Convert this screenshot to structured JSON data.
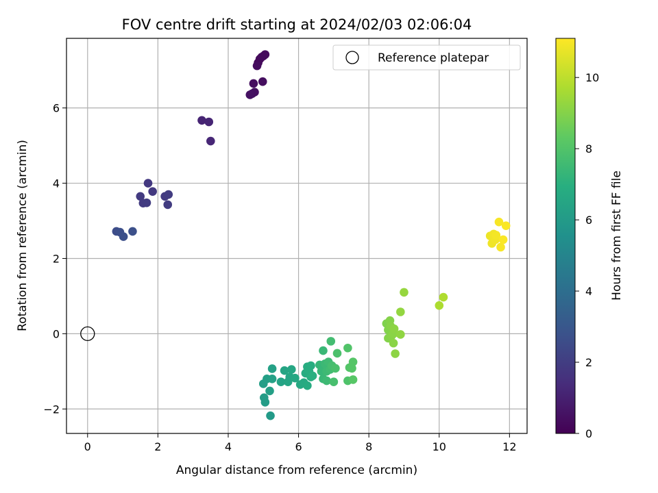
{
  "chart_data": {
    "type": "scatter",
    "title": "FOV centre drift starting at 2024/02/03 02:06:04",
    "xlabel": "Angular distance from reference (arcmin)",
    "ylabel": "Rotation from reference (arcmin)",
    "xlim": [
      -0.6,
      12.5
    ],
    "ylim": [
      -2.65,
      7.85
    ],
    "xticks": [
      0,
      2,
      4,
      6,
      8,
      10,
      12
    ],
    "yticks": [
      -2,
      0,
      2,
      4,
      6
    ],
    "grid": true,
    "legend": {
      "placement": "top-right",
      "entries": [
        "Reference platepar"
      ]
    },
    "reference_point": {
      "x": 0,
      "y": 0
    },
    "colorbar": {
      "label": "Hours from first FF file",
      "range": [
        0,
        11.1
      ],
      "ticks": [
        0,
        2,
        4,
        6,
        8,
        10
      ],
      "colormap": "viridis"
    },
    "points": [
      {
        "x": 4.85,
        "y": 7.2,
        "c": 0.2
      },
      {
        "x": 4.9,
        "y": 7.3,
        "c": 0.25
      },
      {
        "x": 5.0,
        "y": 7.38,
        "c": 0.3
      },
      {
        "x": 5.05,
        "y": 7.42,
        "c": 0.3
      },
      {
        "x": 4.82,
        "y": 7.12,
        "c": 0.35
      },
      {
        "x": 4.95,
        "y": 7.35,
        "c": 0.3
      },
      {
        "x": 4.72,
        "y": 6.65,
        "c": 0.4
      },
      {
        "x": 4.98,
        "y": 6.7,
        "c": 0.4
      },
      {
        "x": 4.75,
        "y": 6.42,
        "c": 0.45
      },
      {
        "x": 4.68,
        "y": 6.38,
        "c": 0.45
      },
      {
        "x": 4.62,
        "y": 6.35,
        "c": 0.5
      },
      {
        "x": 3.25,
        "y": 5.67,
        "c": 1.1
      },
      {
        "x": 3.45,
        "y": 5.63,
        "c": 1.15
      },
      {
        "x": 3.5,
        "y": 5.12,
        "c": 1.2
      },
      {
        "x": 1.72,
        "y": 4.0,
        "c": 1.8
      },
      {
        "x": 1.85,
        "y": 3.78,
        "c": 1.85
      },
      {
        "x": 1.5,
        "y": 3.65,
        "c": 1.9
      },
      {
        "x": 1.58,
        "y": 3.47,
        "c": 1.9
      },
      {
        "x": 1.68,
        "y": 3.48,
        "c": 1.95
      },
      {
        "x": 2.2,
        "y": 3.65,
        "c": 1.9
      },
      {
        "x": 2.3,
        "y": 3.7,
        "c": 1.95
      },
      {
        "x": 2.28,
        "y": 3.43,
        "c": 1.95
      },
      {
        "x": 0.82,
        "y": 2.72,
        "c": 2.6
      },
      {
        "x": 0.92,
        "y": 2.7,
        "c": 2.65
      },
      {
        "x": 1.02,
        "y": 2.58,
        "c": 2.7
      },
      {
        "x": 1.28,
        "y": 2.72,
        "c": 2.7
      },
      {
        "x": 5.2,
        "y": -2.18,
        "c": 6.0
      },
      {
        "x": 5.05,
        "y": -1.82,
        "c": 6.1
      },
      {
        "x": 5.02,
        "y": -1.7,
        "c": 6.1
      },
      {
        "x": 5.0,
        "y": -1.33,
        "c": 6.15
      },
      {
        "x": 5.1,
        "y": -1.2,
        "c": 6.2
      },
      {
        "x": 5.18,
        "y": -1.52,
        "c": 6.2
      },
      {
        "x": 5.25,
        "y": -1.2,
        "c": 6.3
      },
      {
        "x": 5.25,
        "y": -0.93,
        "c": 6.3
      },
      {
        "x": 5.5,
        "y": -1.28,
        "c": 6.4
      },
      {
        "x": 5.6,
        "y": -0.98,
        "c": 6.45
      },
      {
        "x": 5.7,
        "y": -1.28,
        "c": 6.5
      },
      {
        "x": 5.75,
        "y": -1.15,
        "c": 6.5
      },
      {
        "x": 5.8,
        "y": -0.95,
        "c": 6.55
      },
      {
        "x": 5.9,
        "y": -1.18,
        "c": 6.6
      },
      {
        "x": 6.05,
        "y": -1.35,
        "c": 6.65
      },
      {
        "x": 6.15,
        "y": -1.3,
        "c": 6.7
      },
      {
        "x": 6.2,
        "y": -1.05,
        "c": 6.8
      },
      {
        "x": 6.25,
        "y": -1.38,
        "c": 6.8
      },
      {
        "x": 6.25,
        "y": -0.88,
        "c": 6.85
      },
      {
        "x": 6.3,
        "y": -1.0,
        "c": 6.9
      },
      {
        "x": 6.35,
        "y": -0.85,
        "c": 6.9
      },
      {
        "x": 6.35,
        "y": -1.15,
        "c": 6.95
      },
      {
        "x": 6.4,
        "y": -1.12,
        "c": 7.0
      },
      {
        "x": 6.6,
        "y": -0.83,
        "c": 7.3
      },
      {
        "x": 6.65,
        "y": -1.0,
        "c": 7.35
      },
      {
        "x": 6.7,
        "y": -0.45,
        "c": 7.4
      },
      {
        "x": 6.7,
        "y": -1.2,
        "c": 7.4
      },
      {
        "x": 6.75,
        "y": -0.8,
        "c": 7.45
      },
      {
        "x": 6.8,
        "y": -1.0,
        "c": 7.5
      },
      {
        "x": 6.8,
        "y": -1.25,
        "c": 7.5
      },
      {
        "x": 6.85,
        "y": -0.75,
        "c": 7.55
      },
      {
        "x": 6.9,
        "y": -0.95,
        "c": 7.6
      },
      {
        "x": 6.92,
        "y": -0.2,
        "c": 7.65
      },
      {
        "x": 6.95,
        "y": -0.85,
        "c": 7.7
      },
      {
        "x": 7.0,
        "y": -1.28,
        "c": 7.75
      },
      {
        "x": 7.05,
        "y": -0.92,
        "c": 7.8
      },
      {
        "x": 7.1,
        "y": -0.52,
        "c": 7.85
      },
      {
        "x": 7.4,
        "y": -1.25,
        "c": 7.95
      },
      {
        "x": 7.4,
        "y": -0.38,
        "c": 8.0
      },
      {
        "x": 7.45,
        "y": -0.9,
        "c": 8.05
      },
      {
        "x": 7.52,
        "y": -0.92,
        "c": 8.1
      },
      {
        "x": 7.55,
        "y": -0.75,
        "c": 8.1
      },
      {
        "x": 7.55,
        "y": -1.22,
        "c": 8.15
      },
      {
        "x": 8.5,
        "y": 0.27,
        "c": 8.9
      },
      {
        "x": 8.55,
        "y": 0.1,
        "c": 8.95
      },
      {
        "x": 8.55,
        "y": -0.12,
        "c": 9.0
      },
      {
        "x": 8.6,
        "y": 0.35,
        "c": 9.0
      },
      {
        "x": 8.62,
        "y": 0.2,
        "c": 9.05
      },
      {
        "x": 8.65,
        "y": -0.05,
        "c": 9.05
      },
      {
        "x": 8.7,
        "y": -0.25,
        "c": 9.1
      },
      {
        "x": 8.7,
        "y": 0.0,
        "c": 9.1
      },
      {
        "x": 8.72,
        "y": 0.13,
        "c": 9.15
      },
      {
        "x": 8.75,
        "y": -0.53,
        "c": 9.15
      },
      {
        "x": 8.9,
        "y": -0.02,
        "c": 9.2
      },
      {
        "x": 8.9,
        "y": 0.58,
        "c": 9.25
      },
      {
        "x": 9.0,
        "y": 1.1,
        "c": 9.3
      },
      {
        "x": 10.0,
        "y": 0.75,
        "c": 9.7
      },
      {
        "x": 10.12,
        "y": 0.97,
        "c": 9.75
      },
      {
        "x": 11.45,
        "y": 2.6,
        "c": 10.8
      },
      {
        "x": 11.5,
        "y": 2.4,
        "c": 10.85
      },
      {
        "x": 11.52,
        "y": 2.55,
        "c": 10.85
      },
      {
        "x": 11.55,
        "y": 2.65,
        "c": 10.9
      },
      {
        "x": 11.6,
        "y": 2.5,
        "c": 10.9
      },
      {
        "x": 11.62,
        "y": 2.62,
        "c": 10.95
      },
      {
        "x": 11.7,
        "y": 2.97,
        "c": 11.0
      },
      {
        "x": 11.75,
        "y": 2.3,
        "c": 11.0
      },
      {
        "x": 11.82,
        "y": 2.5,
        "c": 11.05
      },
      {
        "x": 11.9,
        "y": 2.87,
        "c": 11.05
      }
    ]
  }
}
